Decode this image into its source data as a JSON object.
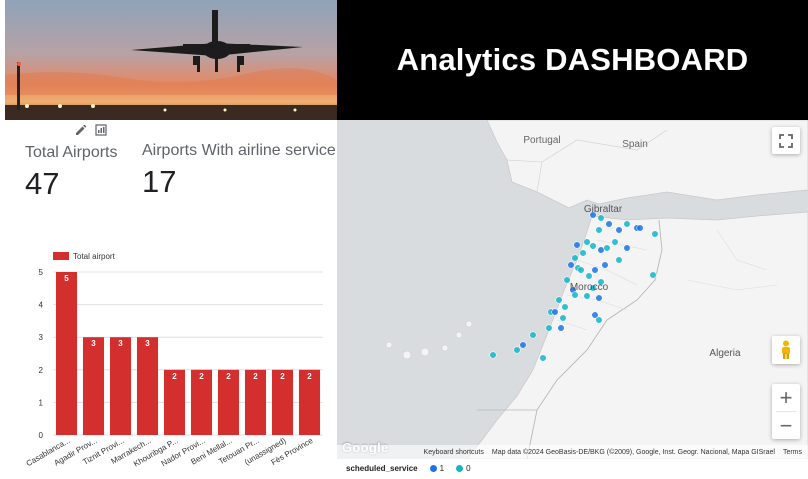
{
  "dashboard": {
    "title": "Analytics DASHBOARD"
  },
  "scorecards": [
    {
      "label": "Total Airports",
      "value": "47"
    },
    {
      "label": "Airports With airline service",
      "value": "17"
    }
  ],
  "chart_data": {
    "type": "bar",
    "categories": [
      "Casablanca...",
      "Agadir Prov...",
      "Tiznit Provi...",
      "Marrakech...",
      "Khouribga P...",
      "Nador Provi...",
      "Beni Mellal...",
      "Tetouan Pr...",
      "(unassigned)",
      "Fès Province"
    ],
    "series": [
      {
        "name": "Total airport",
        "values": [
          5,
          3,
          3,
          3,
          2,
          2,
          2,
          2,
          2,
          2
        ],
        "color": "#d32f2f"
      }
    ],
    "ylim": [
      0,
      5
    ],
    "yticks": [
      "0",
      "1",
      "2",
      "3",
      "4",
      "5"
    ],
    "data_labels": true,
    "grid": true,
    "legend": "top-left"
  },
  "map": {
    "labels": {
      "portugal": "Portugal",
      "spain": "Spain",
      "gibraltar": "Gibraltar",
      "morocco": "Morocco",
      "algeria": "Algeria"
    },
    "footer": {
      "shortcuts": "Keyboard shortcuts",
      "data": "Map data ©2024 GeoBasis-DE/BKG (©2009), Google, Inst. Geogr. Nacional, Mapa GISrael",
      "terms": "Terms"
    },
    "logo": "Google",
    "zoom_in": "+",
    "zoom_out": "−",
    "colors": {
      "service_1": "#1a73e8",
      "service_0": "#12b5cb"
    }
  },
  "legend": {
    "title": "scheduled_service",
    "items": [
      {
        "label": "1",
        "color": "#1a73e8"
      },
      {
        "label": "0",
        "color": "#12b5cb"
      }
    ]
  }
}
